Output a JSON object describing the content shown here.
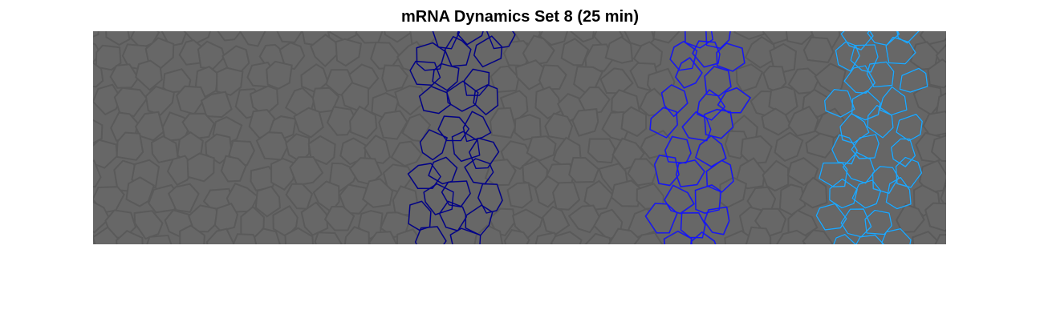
{
  "figure": {
    "title": "mRNA Dynamics Set 8 (25 min)"
  },
  "image": {
    "description_colors": {
      "background": "#666666",
      "cell_outline": "#5a5a5a",
      "stripe_1": "#00008b",
      "stripe_2": "#1414ff",
      "stripe_3": "#1ea8ff"
    },
    "stripes": [
      {
        "name": "stripe-dark-blue",
        "color": "#00008b"
      },
      {
        "name": "stripe-blue",
        "color": "#1414ff"
      },
      {
        "name": "stripe-light-blue",
        "color": "#1ea8ff"
      }
    ]
  }
}
